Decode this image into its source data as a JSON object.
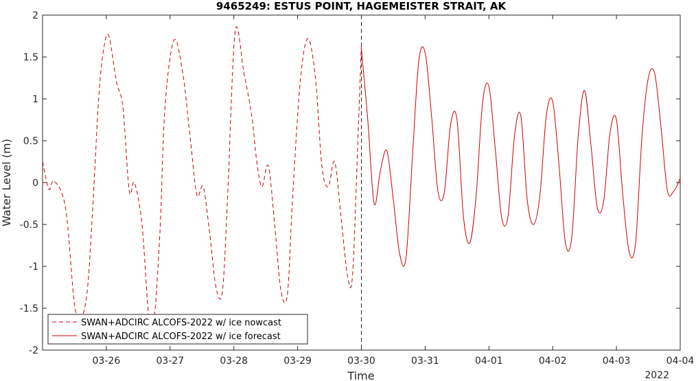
{
  "chart_data": {
    "type": "line",
    "title": "9465249: ESTUS POINT, HAGEMEISTER STRAIT, AK",
    "xlabel": "Time",
    "ylabel": "Water Level (m)",
    "year_label": "2022",
    "xlim": [
      "2022-03-25 00:00",
      "2022-04-04 00:00"
    ],
    "ylim": [
      -2,
      2
    ],
    "x_ticks": [
      "03-26",
      "03-27",
      "03-28",
      "03-29",
      "03-30",
      "03-31",
      "04-01",
      "04-02",
      "04-03",
      "04-04"
    ],
    "x_tick_dates": [
      "2022-03-26",
      "2022-03-27",
      "2022-03-28",
      "2022-03-29",
      "2022-03-30",
      "2022-03-31",
      "2022-04-01",
      "2022-04-02",
      "2022-04-03",
      "2022-04-04"
    ],
    "y_ticks": [
      "2",
      "1.5",
      "1",
      "0.5",
      "0",
      "-0.5",
      "-1",
      "-1.5",
      "-2"
    ],
    "y_tick_values": [
      2,
      1.5,
      1,
      0.5,
      0,
      -0.5,
      -1,
      -1.5,
      -2
    ],
    "grid": false,
    "legend_position": "bottom-left",
    "nowcast_end": "2022-03-30 00:00",
    "series": [
      {
        "name": "SWAN+ADCIRC ALCOFS-2022 w/ ice nowcast",
        "color": "#cc0000",
        "style": "dashed",
        "x": [
          "2022-03-25 00:00",
          "2022-03-25 02:24",
          "2022-03-25 04:19",
          "2022-03-25 08:38",
          "2022-03-25 12:00",
          "2022-03-25 14:24",
          "2022-03-25 16:48",
          "2022-03-25 18:43",
          "2022-03-25 21:07",
          "2022-03-25 23:02",
          "2022-03-26 00:58",
          "2022-03-26 03:50",
          "2022-03-26 06:14",
          "2022-03-26 08:38",
          "2022-03-26 10:34",
          "2022-03-26 13:26",
          "2022-03-26 15:50",
          "2022-03-26 17:46",
          "2022-03-26 20:10",
          "2022-03-26 22:05",
          "2022-03-27 01:26",
          "2022-03-27 04:48",
          "2022-03-27 07:41",
          "2022-03-27 10:05",
          "2022-03-27 12:29",
          "2022-03-27 14:53",
          "2022-03-27 17:17",
          "2022-03-27 19:41",
          "2022-03-27 21:36",
          "2022-03-28 00:29",
          "2022-03-28 03:50",
          "2022-03-28 06:43",
          "2022-03-28 08:38",
          "2022-03-28 10:34",
          "2022-03-28 12:58",
          "2022-03-28 15:22",
          "2022-03-28 17:46",
          "2022-03-28 20:10",
          "2022-03-28 22:05",
          "2022-03-29 00:58",
          "2022-03-29 03:50",
          "2022-03-29 06:43",
          "2022-03-29 09:07",
          "2022-03-29 11:31",
          "2022-03-29 13:55",
          "2022-03-29 16:19",
          "2022-03-29 18:43",
          "2022-03-29 20:38",
          "2022-03-29 22:34",
          "2022-03-30 00:00"
        ],
        "y": [
          0.25,
          -0.08,
          0.02,
          -0.3,
          -1.45,
          -1.63,
          -1.3,
          -0.4,
          1.0,
          1.6,
          1.75,
          1.2,
          0.9,
          -0.1,
          0.0,
          -0.5,
          -1.55,
          -1.7,
          -0.6,
          0.9,
          1.7,
          1.3,
          0.5,
          -0.15,
          -0.05,
          -0.6,
          -1.25,
          -1.3,
          -0.2,
          1.8,
          1.3,
          0.8,
          0.25,
          -0.05,
          0.2,
          -0.5,
          -1.3,
          -1.33,
          -0.2,
          1.2,
          1.72,
          1.25,
          0.2,
          -0.05,
          0.25,
          -0.4,
          -1.1,
          -1.12,
          0.4,
          1.65
        ]
      },
      {
        "name": "SWAN+ADCIRC ALCOFS-2022 w/ ice forecast",
        "color": "#cc0000",
        "style": "solid",
        "x": [
          "2022-03-30 00:00",
          "2022-03-30 02:24",
          "2022-03-30 04:48",
          "2022-03-30 07:12",
          "2022-03-30 09:36",
          "2022-03-30 12:00",
          "2022-03-30 14:24",
          "2022-03-30 16:48",
          "2022-03-30 19:12",
          "2022-03-30 21:36",
          "2022-03-31 00:00",
          "2022-03-31 02:24",
          "2022-03-31 04:48",
          "2022-03-31 07:12",
          "2022-03-31 09:36",
          "2022-03-31 12:00",
          "2022-03-31 14:24",
          "2022-03-31 16:48",
          "2022-03-31 19:12",
          "2022-03-31 21:36",
          "2022-04-01 00:00",
          "2022-04-01 02:24",
          "2022-04-01 04:48",
          "2022-04-01 07:12",
          "2022-04-01 09:36",
          "2022-04-01 12:00",
          "2022-04-01 14:24",
          "2022-04-01 16:48",
          "2022-04-01 19:12",
          "2022-04-01 21:36",
          "2022-04-02 00:00",
          "2022-04-02 02:24",
          "2022-04-02 04:48",
          "2022-04-02 07:12",
          "2022-04-02 09:36",
          "2022-04-02 12:00",
          "2022-04-02 14:24",
          "2022-04-02 16:48",
          "2022-04-02 19:12",
          "2022-04-02 21:36",
          "2022-04-03 00:00",
          "2022-04-03 02:24",
          "2022-04-03 04:48",
          "2022-04-03 07:12",
          "2022-04-03 09:36",
          "2022-04-03 12:00",
          "2022-04-03 14:24",
          "2022-04-03 16:48",
          "2022-04-03 19:12",
          "2022-04-03 21:36",
          "2022-04-04 00:00"
        ],
        "y": [
          1.6,
          0.75,
          -0.25,
          0.15,
          0.38,
          -0.2,
          -0.85,
          -0.9,
          0.3,
          1.45,
          1.55,
          0.8,
          -0.1,
          -0.12,
          0.7,
          0.75,
          -0.4,
          -0.72,
          -0.15,
          0.95,
          1.15,
          0.4,
          -0.42,
          -0.4,
          0.55,
          0.8,
          -0.2,
          -0.5,
          -0.15,
          0.8,
          0.97,
          0.2,
          -0.72,
          -0.65,
          0.55,
          1.1,
          0.45,
          -0.3,
          -0.22,
          0.6,
          0.75,
          -0.15,
          -0.83,
          -0.72,
          0.55,
          1.25,
          1.3,
          0.65,
          -0.1,
          -0.1,
          0.05
        ]
      }
    ]
  }
}
